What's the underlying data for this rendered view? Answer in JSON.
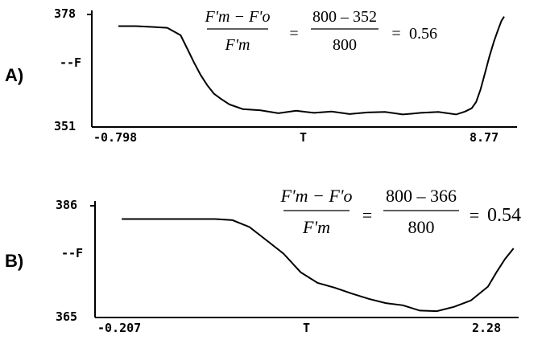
{
  "chart_data": [
    {
      "type": "line",
      "panel_label": "A)",
      "xlabel": "T",
      "ylabel": "--F",
      "x_tick_labels": [
        "-0.798",
        "8.77"
      ],
      "y_tick_labels": [
        "351",
        "378"
      ],
      "xlim": [
        -0.798,
        8.77
      ],
      "ylim": [
        351,
        378
      ],
      "grid": false,
      "series": [
        {
          "x": [
            -0.2,
            0.2,
            0.6,
            0.9,
            1.2,
            1.35,
            1.5,
            1.65,
            1.8,
            1.95,
            2.1,
            2.3,
            2.6,
            3.0,
            3.4,
            3.8,
            4.2,
            4.6,
            5.0,
            5.4,
            5.8,
            6.2,
            6.6,
            7.0,
            7.4,
            7.6,
            7.75,
            7.85,
            7.95,
            8.05,
            8.15,
            8.25,
            8.35,
            8.42,
            8.48
          ],
          "y": [
            375.2,
            375.2,
            375.0,
            374.8,
            373.0,
            369.8,
            366.5,
            363.5,
            361.0,
            359.0,
            357.8,
            356.4,
            355.3,
            355.0,
            354.3,
            354.9,
            354.4,
            354.7,
            354.1,
            354.5,
            354.6,
            354.0,
            354.4,
            354.6,
            354.0,
            354.7,
            355.5,
            357.0,
            360.0,
            364.0,
            368.0,
            371.5,
            374.5,
            376.5,
            377.5
          ]
        }
      ],
      "annotation": {
        "lhs_num": "F'm − F'o",
        "lhs_den": "F'm",
        "rhs_num": "800 – 352",
        "rhs_den": "800",
        "result": "0.56"
      }
    },
    {
      "type": "line",
      "panel_label": "B)",
      "xlabel": "T",
      "ylabel": "--F",
      "x_tick_labels": [
        "-0.207",
        "2.28"
      ],
      "y_tick_labels": [
        "365",
        "386"
      ],
      "xlim": [
        -0.207,
        2.28
      ],
      "ylim": [
        365,
        386
      ],
      "grid": false,
      "series": [
        {
          "x": [
            -0.05,
            0.2,
            0.4,
            0.5,
            0.6,
            0.7,
            0.8,
            0.9,
            1.0,
            1.1,
            1.2,
            1.3,
            1.4,
            1.5,
            1.6,
            1.7,
            1.8,
            1.9,
            2.0,
            2.1,
            2.15,
            2.2,
            2.25
          ],
          "y": [
            383.5,
            383.5,
            383.5,
            383.5,
            383.3,
            382.0,
            379.5,
            377.0,
            373.5,
            371.5,
            370.6,
            369.5,
            368.5,
            367.7,
            367.3,
            366.3,
            366.2,
            367.0,
            368.2,
            370.8,
            373.5,
            376.0,
            378.0
          ]
        }
      ],
      "annotation": {
        "lhs_num": "F'm − F'o",
        "lhs_den": "F'm",
        "rhs_num": "800 – 366",
        "rhs_den": "800",
        "result": "0.54"
      }
    }
  ]
}
